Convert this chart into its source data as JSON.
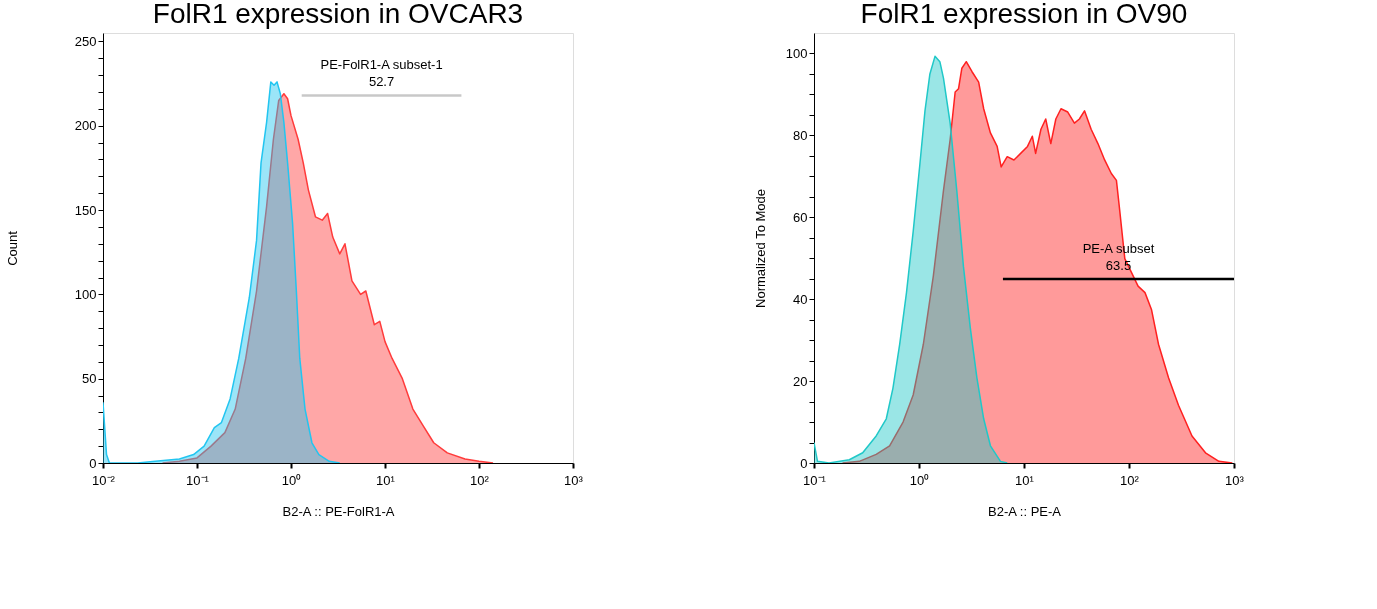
{
  "chart_data": [
    {
      "type": "area",
      "title": "FolR1 expression in OVCAR3",
      "xlabel": "B2-A :: PE-FolR1-A",
      "ylabel": "Count",
      "log": "x",
      "grid": false,
      "xlim": [
        0.01,
        1000
      ],
      "xticks": [
        {
          "value": 0.01,
          "label": "10⁻²"
        },
        {
          "value": 0.1,
          "label": "10⁻¹"
        },
        {
          "value": 1,
          "label": "10⁰"
        },
        {
          "value": 10,
          "label": "10¹"
        },
        {
          "value": 100,
          "label": "10²"
        },
        {
          "value": 1000,
          "label": "10³"
        }
      ],
      "ylim": [
        0,
        255
      ],
      "yticks": [
        0,
        {
          "value": 10,
          "label": null
        },
        {
          "value": 20,
          "label": null
        },
        {
          "value": 30,
          "label": null
        },
        {
          "value": 40,
          "label": null
        },
        50,
        {
          "value": 60,
          "label": null
        },
        {
          "value": 70,
          "label": null
        },
        {
          "value": 80,
          "label": null
        },
        {
          "value": 90,
          "label": null
        },
        100,
        {
          "value": 110,
          "label": null
        },
        {
          "value": 120,
          "label": null
        },
        {
          "value": 130,
          "label": null
        },
        {
          "value": 140,
          "label": null
        },
        150,
        {
          "value": 160,
          "label": null
        },
        {
          "value": 170,
          "label": null
        },
        {
          "value": 180,
          "label": null
        },
        {
          "value": 190,
          "label": null
        },
        200,
        {
          "value": 210,
          "label": null
        },
        {
          "value": 220,
          "label": null
        },
        {
          "value": 230,
          "label": null
        },
        {
          "value": 240,
          "label": null
        },
        250
      ],
      "series": [
        {
          "color": "#ff3b3b",
          "x": [
            0.043,
            0.065,
            0.1,
            0.141,
            0.198,
            0.255,
            0.33,
            0.43,
            0.55,
            0.65,
            0.74,
            0.84,
            0.92,
            1.0,
            1.19,
            1.35,
            1.53,
            1.82,
            2.15,
            2.45,
            2.78,
            3.3,
            3.75,
            4.45,
            5.5,
            6.25,
            7.7,
            8.8,
            10,
            11.9,
            15.3,
            19.8,
            25.5,
            33,
            46,
            71,
            100,
            141
          ],
          "values": [
            0,
            1,
            3,
            10,
            18,
            32,
            62,
            102,
            152,
            192,
            215,
            219,
            216,
            206,
            192,
            178,
            162,
            146,
            144,
            148,
            134,
            124,
            130,
            108,
            100,
            102,
            82,
            84,
            72,
            62,
            50,
            32,
            22,
            12,
            6,
            2.4,
            1,
            0
          ]
        },
        {
          "color": "#22c5f0",
          "x": [
            0.01,
            0.0109,
            0.0117,
            0.0153,
            0.0234,
            0.036,
            0.065,
            0.092,
            0.119,
            0.153,
            0.182,
            0.225,
            0.278,
            0.36,
            0.43,
            0.48,
            0.55,
            0.61,
            0.66,
            0.71,
            0.77,
            0.84,
            0.92,
            1.04,
            1.14,
            1.24,
            1.41,
            1.67,
            1.98,
            2.55,
            3.3
          ],
          "values": [
            36,
            5,
            0,
            0,
            0,
            1,
            2.4,
            5,
            10,
            21,
            24,
            38,
            62,
            98,
            132,
            178,
            202,
            226,
            224,
            226,
            219,
            202,
            178,
            142,
            102,
            62,
            32,
            12,
            5,
            1,
            0
          ]
        },
        {
          "type": "line",
          "color": "#c8c8c8",
          "x": [
            1.3,
            65
          ],
          "values": [
            218,
            218
          ]
        }
      ],
      "annotations": [
        "PE-FolR1-A subset-1",
        "52.7"
      ]
    },
    {
      "type": "area",
      "title": "FolR1 expression in OV90",
      "xlabel": "B2-A :: PE-A",
      "ylabel": "Normalized To Mode",
      "log": "x",
      "grid": false,
      "xlim": [
        0.1,
        1000
      ],
      "xticks": [
        {
          "value": 0.1,
          "label": "10⁻¹"
        },
        {
          "value": 1,
          "label": "10⁰"
        },
        {
          "value": 10,
          "label": "10¹"
        },
        {
          "value": 100,
          "label": "10²"
        },
        {
          "value": 1000,
          "label": "10³"
        }
      ],
      "ylim": [
        0,
        105
      ],
      "yticks": [
        0,
        {
          "value": 5,
          "label": null
        },
        {
          "value": 10,
          "label": null
        },
        {
          "value": 15,
          "label": null
        },
        20,
        {
          "value": 25,
          "label": null
        },
        {
          "value": 30,
          "label": null
        },
        {
          "value": 35,
          "label": null
        },
        40,
        {
          "value": 45,
          "label": null
        },
        {
          "value": 50,
          "label": null
        },
        {
          "value": 55,
          "label": null
        },
        60,
        {
          "value": 65,
          "label": null
        },
        {
          "value": 70,
          "label": null
        },
        {
          "value": 75,
          "label": null
        },
        80,
        {
          "value": 85,
          "label": null
        },
        {
          "value": 90,
          "label": null
        },
        {
          "value": 95,
          "label": null
        },
        100
      ],
      "series": [
        {
          "color": "#ff2020",
          "x": [
            0.187,
            0.27,
            0.391,
            0.525,
            0.705,
            0.88,
            1.1,
            1.37,
            1.71,
            1.98,
            2.21,
            2.38,
            2.56,
            2.82,
            3.19,
            3.7,
            4.13,
            4.79,
            5.55,
            6.06,
            6.92,
            8.02,
            9.29,
            10.8,
            12.0,
            12.9,
            14.5,
            16.1,
            18.0,
            20.1,
            22.5,
            26.1,
            30.2,
            33.7,
            37.7,
            43.6,
            50.6,
            58.6,
            67.9,
            75.9,
            81.7,
            91.2,
            122,
            142,
            164,
            191,
            238,
            296,
            398,
            535,
            718,
            964
          ],
          "values": [
            0,
            0.4,
            2.1,
            4.2,
            10,
            16.6,
            29,
            45.7,
            66.5,
            79,
            90.6,
            91.4,
            96.4,
            98,
            95.6,
            93,
            86.5,
            80.6,
            77.3,
            72.3,
            74.8,
            74,
            75.6,
            77.3,
            79.8,
            75.6,
            81.5,
            84,
            78,
            84,
            86.5,
            85.7,
            83,
            84,
            86,
            81.5,
            78,
            74,
            70.7,
            69,
            61.5,
            49.9,
            43.2,
            41.6,
            37.4,
            29,
            20.8,
            14.1,
            6.6,
            2.5,
            0.4,
            0
          ]
        },
        {
          "color": "#20c8c8",
          "x": [
            0.1,
            0.108,
            0.139,
            0.217,
            0.291,
            0.391,
            0.488,
            0.565,
            0.655,
            0.76,
            0.88,
            1.02,
            1.14,
            1.27,
            1.42,
            1.58,
            1.71,
            1.98,
            2.29,
            2.65,
            3.08,
            3.56,
            4.13,
            4.79,
            5.97,
            6.92
          ],
          "values": [
            5,
            0.4,
            0,
            0.8,
            2.5,
            6.6,
            10.8,
            18.3,
            29,
            41.6,
            56.5,
            73,
            86,
            95,
            99.3,
            98,
            94,
            83,
            66.5,
            48,
            33,
            20.8,
            10.8,
            4.2,
            0.4,
            0
          ]
        },
        {
          "type": "line",
          "color": "#000000",
          "x": [
            6.3,
            1000
          ],
          "values": [
            44.9,
            44.9
          ]
        }
      ],
      "annotations": [
        "PE-A subset",
        "63.5"
      ]
    }
  ]
}
